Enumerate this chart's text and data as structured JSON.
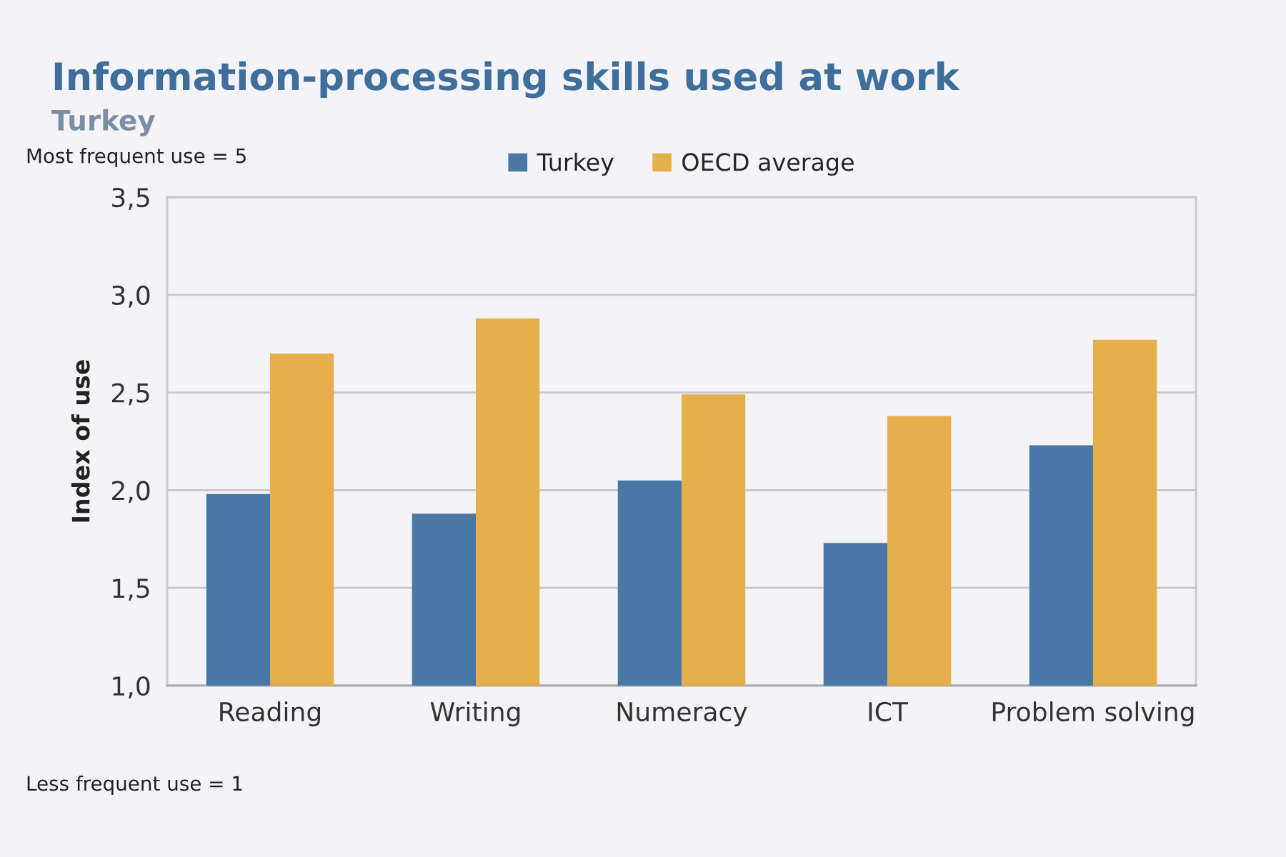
{
  "chart_data": {
    "type": "bar",
    "title": "Information-processing skills used at work",
    "subtitle": "Turkey",
    "ylabel": "Index of use",
    "annotations": [
      "Most frequent use = 5",
      "Less frequent use = 1"
    ],
    "categories": [
      "Reading",
      "Writing",
      "Numeracy",
      "ICT",
      "Problem solving"
    ],
    "series": [
      {
        "name": "Turkey",
        "color": "#4a78a6",
        "values": [
          1.98,
          1.88,
          2.05,
          1.73,
          2.23
        ]
      },
      {
        "name": "OECD average",
        "color": "#e5b04c",
        "values": [
          2.7,
          2.88,
          2.49,
          2.38,
          2.77
        ]
      }
    ],
    "ylim": [
      1.0,
      3.5
    ],
    "yticks": [
      {
        "value": 1.0,
        "label": "1,0"
      },
      {
        "value": 1.5,
        "label": "1,5"
      },
      {
        "value": 2.0,
        "label": "2,0"
      },
      {
        "value": 2.5,
        "label": "2,5"
      },
      {
        "value": 3.0,
        "label": "3,0"
      },
      {
        "value": 3.5,
        "label": "3,5"
      }
    ],
    "grid": "y",
    "legend": "top"
  }
}
